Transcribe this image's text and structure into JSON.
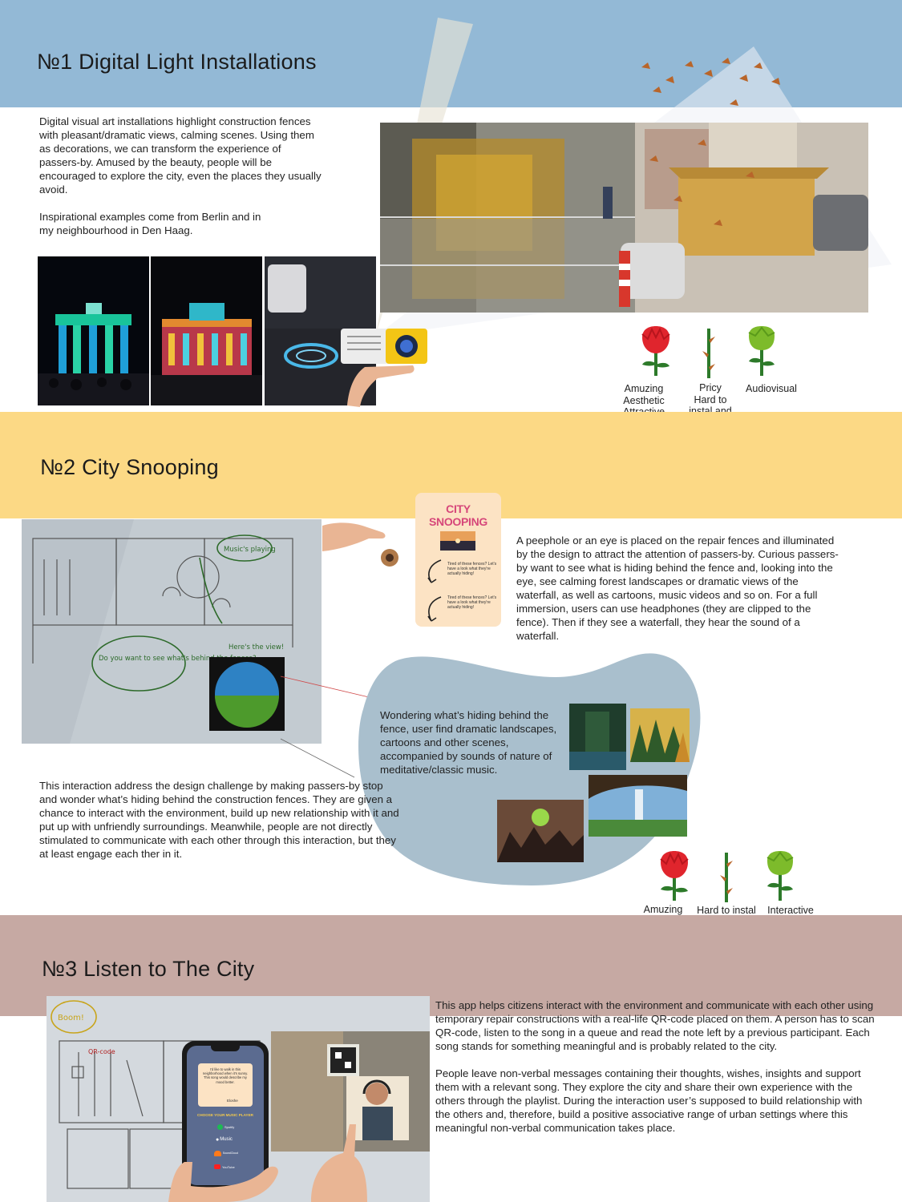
{
  "colors": {
    "section1_band": "#93b9d6",
    "section2_band": "#fcd985",
    "section3_band": "#c6a9a3",
    "blob": "#a9bfcd",
    "rose_red": "#e0252d",
    "bud_green": "#7dbb2b",
    "stem_green": "#2d7a2a"
  },
  "section1": {
    "title": "№1 Digital Light Installations",
    "paragraph1": "Digital visual art installations highlight construction fences with pleasant/dramatic views, calming  scenes. Using them as decorations, we can transform the experience of passers-by. Amused by the beauty, people will be encouraged to explore the city, even the places they usually avoid.",
    "paragraph2": "Inspirational examples come from Berlin and in my neighbourhood in Den Haag.",
    "rating": {
      "pros": "Amuzing\nAesthetic\nAttractive\nInterractive",
      "cons": "Pricy\nHard to\ninstal and\nmaintain",
      "neutral": "Audiovisual"
    }
  },
  "section2": {
    "title": "№2 City Snooping",
    "card_title": "CITY SNOOPING",
    "card_note": "Tired of these fences? Let's have a look what they're actually hiding!",
    "sketch_notes": {
      "music": "Music's playing",
      "bubble": "Do you want to see what's behind the fences?",
      "view": "Here's the view!"
    },
    "description": "A peephole or an eye is placed on the repair fences and illuminated by the design to attract the attention of passers-by. Curious passers-by want to see what is hiding behind the fence and, looking into the eye, see calming forest landscapes or dramatic views of the waterfall, as well as cartoons, music videos and so on. For a full immersion, users can use headphones (they are clipped to the fence). Then if they see a waterfall, they hear the sound of a waterfall.",
    "blob_text": "Wondering what’s hiding behind the fence, user find dramatic landscapes, cartoons and other scenes, accompanied by sounds of nature of meditative/classic music.",
    "challenge_text": "This interaction address the design challenge by making passers-by stop and wonder what’s hiding behind the construction fences. They are given a chance to interact with the environment, build up new relationship with it and put up with unfriendly surroundings. Meanwhile, people are not directly stimulated to communicate with each other through this interaction, but they at least engage each ther in it.",
    "rating": {
      "pros": "Amuzing\nAesthetic\nAttractive\nDiverse oprions",
      "cons": "Hard to instal\nand maintain\nExpensive",
      "neutral": "Interactive"
    }
  },
  "section3": {
    "title": "№3 Listen to The City",
    "sketch_notes": {
      "boom": "Boom!",
      "qr": "QR-code"
    },
    "phone": {
      "note": "I'd like to walk in this neighborhood when it's sunny. This song would describe my mood better.",
      "signature": "Eloshe",
      "heading": "CHOOSE YOUR MUSIC PLAYER",
      "players": [
        "Spotify",
        "Music",
        "SoundCloud",
        "YouTube"
      ]
    },
    "paragraph1": "This app helps citizens interact with the environment and communicate with each other using temporary repair constructions with a real-life QR-code placed on them. A person has to scan QR-code, listen to the song in a queue and read the note left by a previous participant. Each song stands for something meaningful and is probably related to the city.",
    "paragraph2": "People leave non-verbal messages containing their thoughts, wishes, insights and support them with a relevant song. They explore the city and share their own experience with the others through the playlist.  During the interaction user’s supposed to build relationship with the others and, therefore, build a positive associative range of urban settings where this meaningful non-verbal communication takes place."
  }
}
